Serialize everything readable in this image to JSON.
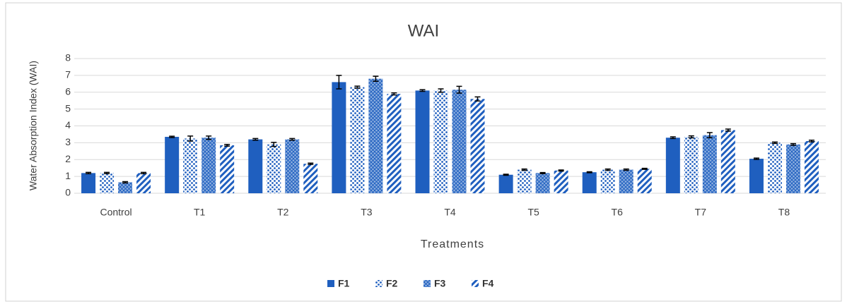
{
  "chart_data": {
    "type": "bar",
    "title": "WAI",
    "x_label": "Treatments",
    "y_label": "Water Absorption Index (WAI)",
    "categories": [
      "Control",
      "T1",
      "T2",
      "T3",
      "T4",
      "T5",
      "T6",
      "T7",
      "T8"
    ],
    "series": [
      {
        "name": "F1",
        "color": "#1f5fbf",
        "pattern": "solid",
        "values": [
          1.2,
          3.35,
          3.2,
          6.6,
          6.1,
          1.1,
          1.25,
          3.3,
          2.05
        ],
        "errors": [
          0.04,
          0.04,
          0.05,
          0.4,
          0.05,
          0.03,
          0.03,
          0.05,
          0.04
        ]
      },
      {
        "name": "F2",
        "color": "#1f5fbf",
        "pattern": "dots",
        "values": [
          1.2,
          3.25,
          2.9,
          6.3,
          6.1,
          1.4,
          1.4,
          3.35,
          3.0
        ],
        "errors": [
          0.04,
          0.15,
          0.12,
          0.06,
          0.1,
          0.04,
          0.04,
          0.06,
          0.04
        ]
      },
      {
        "name": "F3",
        "color": "#1f5fbf",
        "pattern": "grid",
        "values": [
          0.65,
          3.3,
          3.2,
          6.8,
          6.15,
          1.2,
          1.4,
          3.45,
          2.9
        ],
        "errors": [
          0.04,
          0.1,
          0.05,
          0.15,
          0.2,
          0.03,
          0.04,
          0.15,
          0.05
        ]
      },
      {
        "name": "F4",
        "color": "#1f5fbf",
        "pattern": "diagonal",
        "values": [
          1.2,
          2.85,
          1.75,
          5.9,
          5.6,
          1.35,
          1.45,
          3.75,
          3.1
        ],
        "errors": [
          0.04,
          0.05,
          0.04,
          0.06,
          0.12,
          0.03,
          0.03,
          0.06,
          0.05
        ]
      }
    ],
    "ylim": [
      0,
      8
    ],
    "yticks": [
      0,
      1,
      2,
      3,
      4,
      5,
      6,
      7,
      8
    ],
    "grid": true,
    "legend": "bottom"
  }
}
